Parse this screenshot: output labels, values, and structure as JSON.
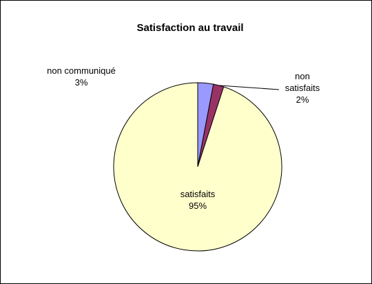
{
  "chart_data": {
    "type": "pie",
    "title": "Satisfaction au travail",
    "categories": [
      "non communiqué",
      "non satisfaits",
      "satisfaits"
    ],
    "values": [
      3,
      2,
      95
    ],
    "value_labels": [
      "3%",
      "2%",
      "95%"
    ],
    "colors": [
      "#9999ff",
      "#993366",
      "#ffffcc"
    ]
  }
}
